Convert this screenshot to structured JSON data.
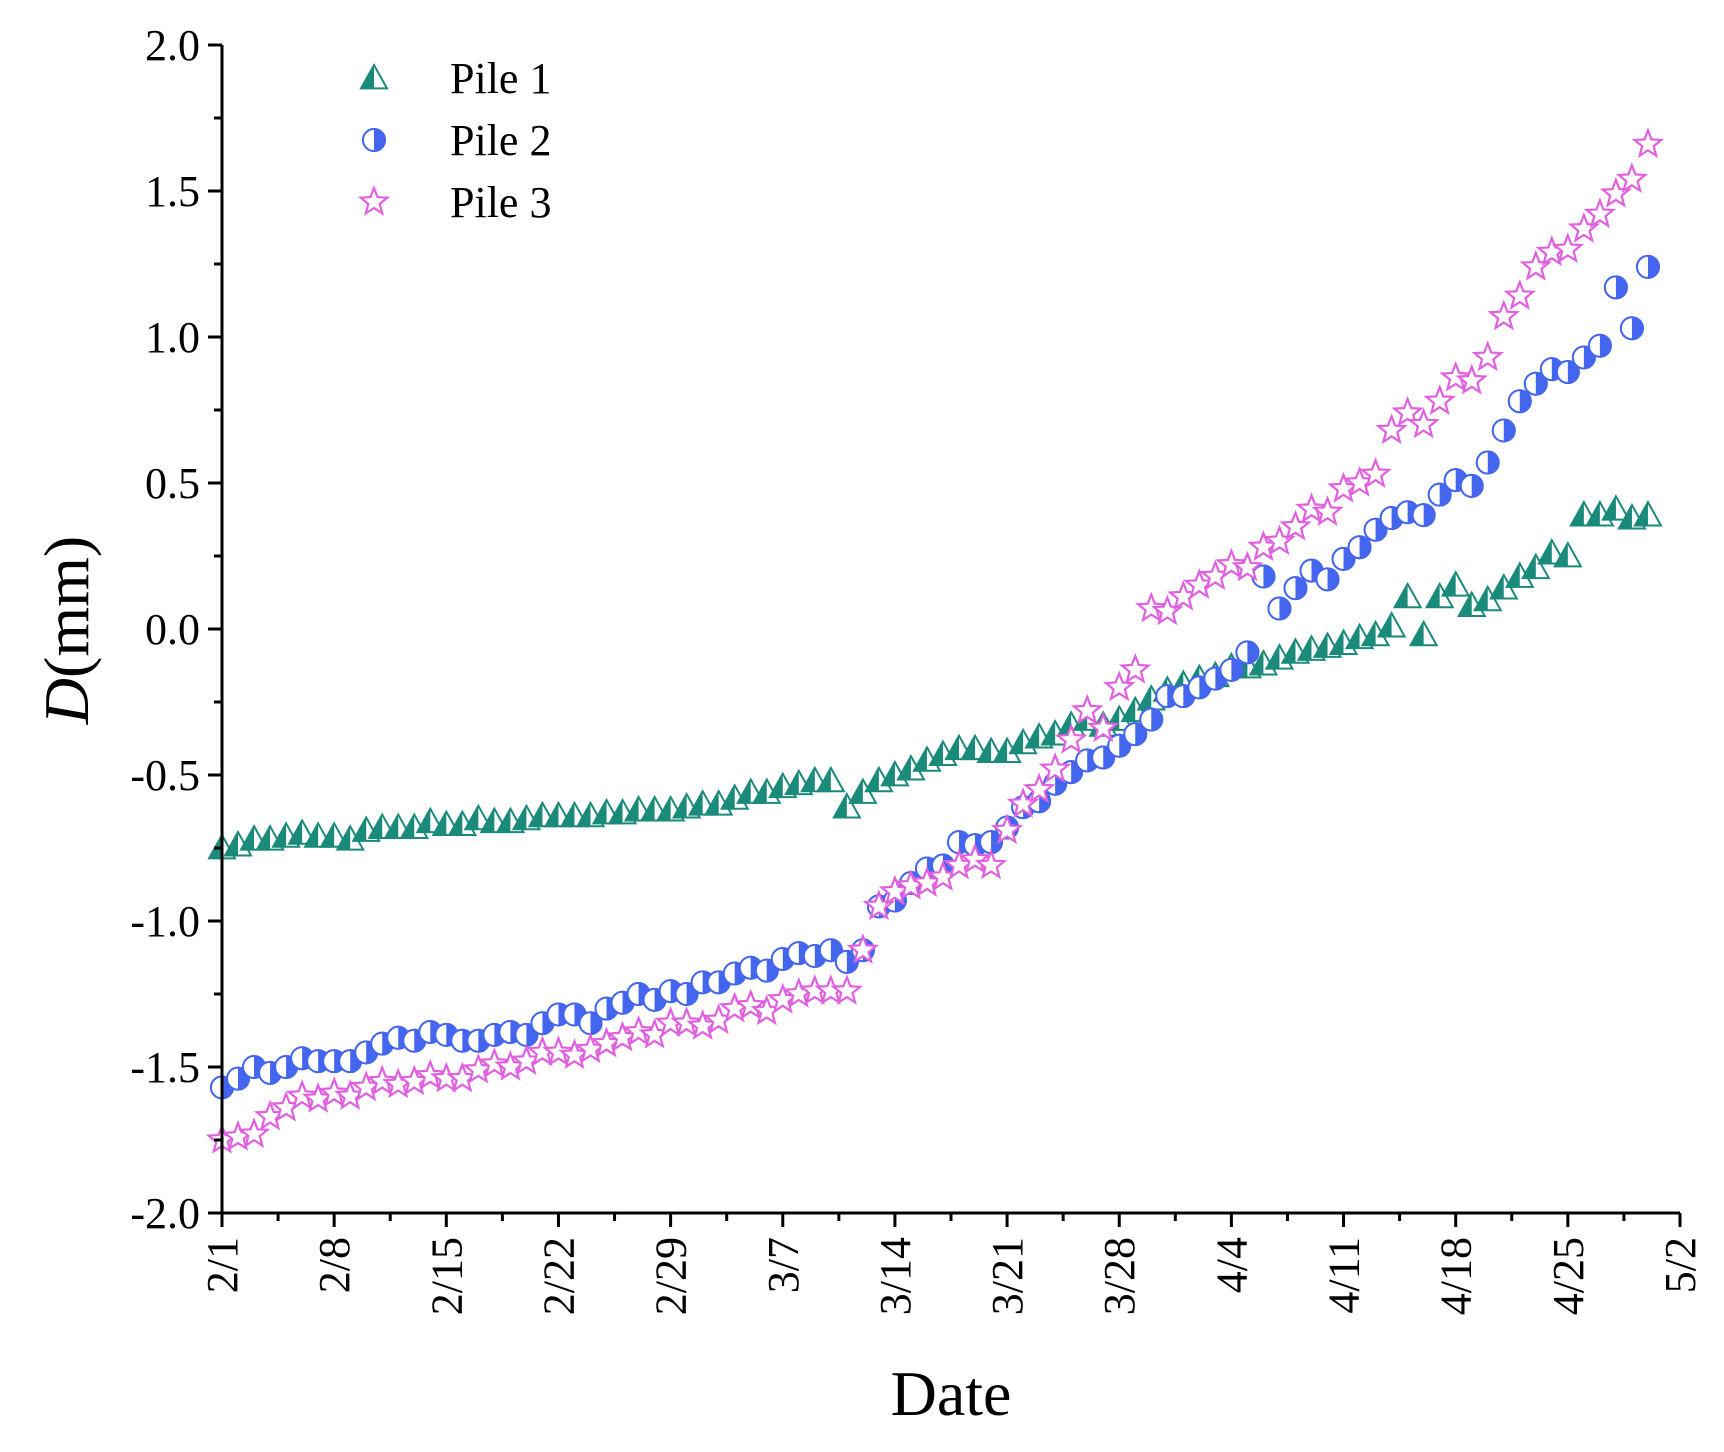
{
  "chart_data": {
    "type": "scatter",
    "title": "",
    "xlabel": "Date",
    "ylabel_italic": "D",
    "ylabel_unit": "(mm)",
    "ylim": [
      -2.0,
      2.0
    ],
    "y_ticks": [
      -2.0,
      -1.5,
      -1.0,
      -0.5,
      0.0,
      0.5,
      1.0,
      1.5,
      2.0
    ],
    "y_tick_labels": [
      "-2.0",
      "-1.5",
      "-1.0",
      "-0.5",
      "0.0",
      "0.5",
      "1.0",
      "1.5",
      "2.0"
    ],
    "xlim_days": [
      0,
      91
    ],
    "x_ticks_days": [
      0,
      7,
      14,
      21,
      28,
      35,
      42,
      49,
      56,
      63,
      70,
      77,
      84,
      91
    ],
    "x_tick_labels": [
      "2/1",
      "2/8",
      "2/15",
      "2/22",
      "2/29",
      "3/7",
      "3/14",
      "3/21",
      "3/28",
      "4/4",
      "4/11",
      "4/18",
      "4/25",
      "5/2"
    ],
    "x_unit": "days since 2/1",
    "legend_position": "top-left",
    "series": [
      {
        "name": "Pile 1",
        "marker": "triangle",
        "color": "#1a8a7a",
        "x": [
          0,
          1,
          2,
          3,
          4,
          5,
          6,
          7,
          8,
          9,
          10,
          11,
          12,
          13,
          14,
          15,
          16,
          17,
          18,
          19,
          20,
          21,
          22,
          23,
          24,
          25,
          26,
          27,
          28,
          29,
          30,
          31,
          32,
          33,
          34,
          35,
          36,
          37,
          38,
          39,
          40,
          41,
          42,
          43,
          44,
          45,
          46,
          47,
          48,
          49,
          50,
          51,
          52,
          53,
          54,
          55,
          56,
          57,
          58,
          59,
          60,
          61,
          62,
          63,
          64,
          65,
          66,
          67,
          68,
          69,
          70,
          71,
          72,
          73,
          74,
          75,
          76,
          77,
          78,
          79,
          80,
          81,
          82,
          83,
          84,
          85,
          86,
          87,
          88,
          89
        ],
        "y": [
          -0.75,
          -0.74,
          -0.72,
          -0.72,
          -0.71,
          -0.7,
          -0.71,
          -0.71,
          -0.72,
          -0.69,
          -0.68,
          -0.68,
          -0.68,
          -0.66,
          -0.67,
          -0.67,
          -0.65,
          -0.66,
          -0.66,
          -0.65,
          -0.64,
          -0.64,
          -0.64,
          -0.64,
          -0.63,
          -0.63,
          -0.62,
          -0.62,
          -0.62,
          -0.61,
          -0.6,
          -0.6,
          -0.58,
          -0.56,
          -0.56,
          -0.54,
          -0.53,
          -0.52,
          -0.52,
          -0.61,
          -0.56,
          -0.52,
          -0.5,
          -0.48,
          -0.45,
          -0.43,
          -0.41,
          -0.41,
          -0.42,
          -0.42,
          -0.39,
          -0.37,
          -0.36,
          -0.33,
          -0.31,
          -0.33,
          -0.31,
          -0.28,
          -0.24,
          -0.21,
          -0.19,
          -0.17,
          -0.16,
          -0.13,
          -0.13,
          -0.12,
          -0.1,
          -0.08,
          -0.07,
          -0.06,
          -0.05,
          -0.03,
          -0.02,
          0.01,
          0.11,
          -0.02,
          0.11,
          0.15,
          0.08,
          0.1,
          0.14,
          0.18,
          0.21,
          0.26,
          0.25,
          0.39,
          0.39,
          0.41,
          0.38,
          0.39
        ]
      },
      {
        "name": "Pile 2",
        "marker": "half-filled-circle",
        "color": "#4466ee",
        "x": [
          0,
          1,
          2,
          3,
          4,
          5,
          6,
          7,
          8,
          9,
          10,
          11,
          12,
          13,
          14,
          15,
          16,
          17,
          18,
          19,
          20,
          21,
          22,
          23,
          24,
          25,
          26,
          27,
          28,
          29,
          30,
          31,
          32,
          33,
          34,
          35,
          36,
          37,
          38,
          39,
          40,
          41,
          42,
          43,
          44,
          45,
          46,
          47,
          48,
          49,
          50,
          51,
          52,
          53,
          54,
          55,
          56,
          57,
          58,
          59,
          60,
          61,
          62,
          63,
          64,
          65,
          66,
          67,
          68,
          69,
          70,
          71,
          72,
          73,
          74,
          75,
          76,
          77,
          78,
          79,
          80,
          81,
          82,
          83,
          84,
          85,
          86,
          87,
          88,
          89
        ],
        "y": [
          -1.57,
          -1.54,
          -1.5,
          -1.52,
          -1.5,
          -1.47,
          -1.48,
          -1.48,
          -1.48,
          -1.45,
          -1.42,
          -1.4,
          -1.41,
          -1.38,
          -1.39,
          -1.41,
          -1.41,
          -1.39,
          -1.38,
          -1.39,
          -1.35,
          -1.32,
          -1.32,
          -1.35,
          -1.3,
          -1.28,
          -1.25,
          -1.27,
          -1.24,
          -1.25,
          -1.21,
          -1.21,
          -1.18,
          -1.16,
          -1.17,
          -1.13,
          -1.11,
          -1.12,
          -1.1,
          -1.14,
          -1.1,
          -0.95,
          -0.93,
          -0.87,
          -0.82,
          -0.81,
          -0.73,
          -0.74,
          -0.73,
          -0.68,
          -0.61,
          -0.59,
          -0.53,
          -0.49,
          -0.45,
          -0.44,
          -0.4,
          -0.36,
          -0.31,
          -0.23,
          -0.23,
          -0.2,
          -0.17,
          -0.14,
          -0.08,
          0.18,
          0.07,
          0.14,
          0.2,
          0.17,
          0.24,
          0.28,
          0.34,
          0.38,
          0.4,
          0.39,
          0.46,
          0.51,
          0.49,
          0.57,
          0.68,
          0.78,
          0.84,
          0.89,
          0.88,
          0.93,
          0.97,
          1.17,
          1.03,
          1.24
        ]
      },
      {
        "name": "Pile 3",
        "marker": "star",
        "color": "#e060e0",
        "x": [
          0,
          1,
          2,
          3,
          4,
          5,
          6,
          7,
          8,
          9,
          10,
          11,
          12,
          13,
          14,
          15,
          16,
          17,
          18,
          19,
          20,
          21,
          22,
          23,
          24,
          25,
          26,
          27,
          28,
          29,
          30,
          31,
          32,
          33,
          34,
          35,
          36,
          37,
          38,
          39,
          40,
          41,
          42,
          43,
          44,
          45,
          46,
          47,
          48,
          49,
          50,
          51,
          52,
          53,
          54,
          55,
          56,
          57,
          58,
          59,
          60,
          61,
          62,
          63,
          64,
          65,
          66,
          67,
          68,
          69,
          70,
          71,
          72,
          73,
          74,
          75,
          76,
          77,
          78,
          79,
          80,
          81,
          82,
          83,
          84,
          85,
          86,
          87,
          88,
          89
        ],
        "y": [
          -1.75,
          -1.74,
          -1.73,
          -1.67,
          -1.64,
          -1.6,
          -1.61,
          -1.59,
          -1.6,
          -1.57,
          -1.55,
          -1.56,
          -1.55,
          -1.53,
          -1.54,
          -1.54,
          -1.51,
          -1.49,
          -1.5,
          -1.48,
          -1.45,
          -1.45,
          -1.46,
          -1.44,
          -1.42,
          -1.4,
          -1.38,
          -1.39,
          -1.35,
          -1.35,
          -1.36,
          -1.34,
          -1.3,
          -1.29,
          -1.31,
          -1.27,
          -1.25,
          -1.24,
          -1.24,
          -1.24,
          -1.1,
          -0.95,
          -0.9,
          -0.88,
          -0.87,
          -0.85,
          -0.81,
          -0.79,
          -0.81,
          -0.69,
          -0.6,
          -0.55,
          -0.48,
          -0.38,
          -0.28,
          -0.34,
          -0.2,
          -0.14,
          0.07,
          0.06,
          0.11,
          0.15,
          0.18,
          0.22,
          0.21,
          0.28,
          0.3,
          0.35,
          0.41,
          0.4,
          0.48,
          0.5,
          0.53,
          0.68,
          0.74,
          0.7,
          0.78,
          0.86,
          0.85,
          0.93,
          1.07,
          1.14,
          1.24,
          1.29,
          1.3,
          1.37,
          1.42,
          1.49,
          1.54,
          1.66
        ]
      }
    ]
  }
}
